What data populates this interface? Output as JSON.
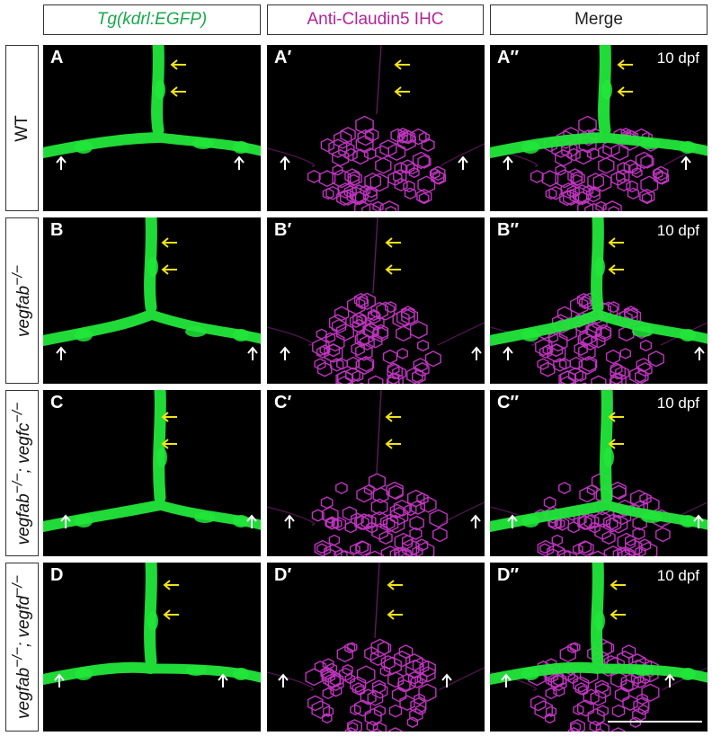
{
  "columns": [
    {
      "label": "Tg(kdrl:EGFP)",
      "italic": true,
      "color": "#1aa84b"
    },
    {
      "label": "Anti-Claudin5 IHC",
      "italic": false,
      "color": "#b2249c"
    },
    {
      "label": "Merge",
      "italic": false,
      "color": "#222222"
    }
  ],
  "rows": [
    {
      "label": "WT",
      "panels": [
        "A",
        "A′",
        "A″"
      ],
      "stage": "10 dpf"
    },
    {
      "label_html": "vegfab<sup>−/−</sup>",
      "panels": [
        "B",
        "B′",
        "B″"
      ],
      "stage": "10 dpf"
    },
    {
      "label_html": "vegfab<sup>−/−</sup>; vegfc<sup>−/−</sup>",
      "panels": [
        "C",
        "C′",
        "C″"
      ],
      "stage": "10 dpf"
    },
    {
      "label_html": "vegfab<sup>−/−</sup>; vegfd<sup>−/−</sup>",
      "panels": [
        "D",
        "D′",
        "D″"
      ],
      "stage": "10 dpf"
    }
  ],
  "colors": {
    "egfp": "#22e63a",
    "claudin": "#d43ad4",
    "yellow_arrow": "#f2e21a",
    "white_arrow": "#ffffff"
  },
  "arrows": {
    "yellow_per_panel": 2,
    "white_per_panel": 2
  }
}
